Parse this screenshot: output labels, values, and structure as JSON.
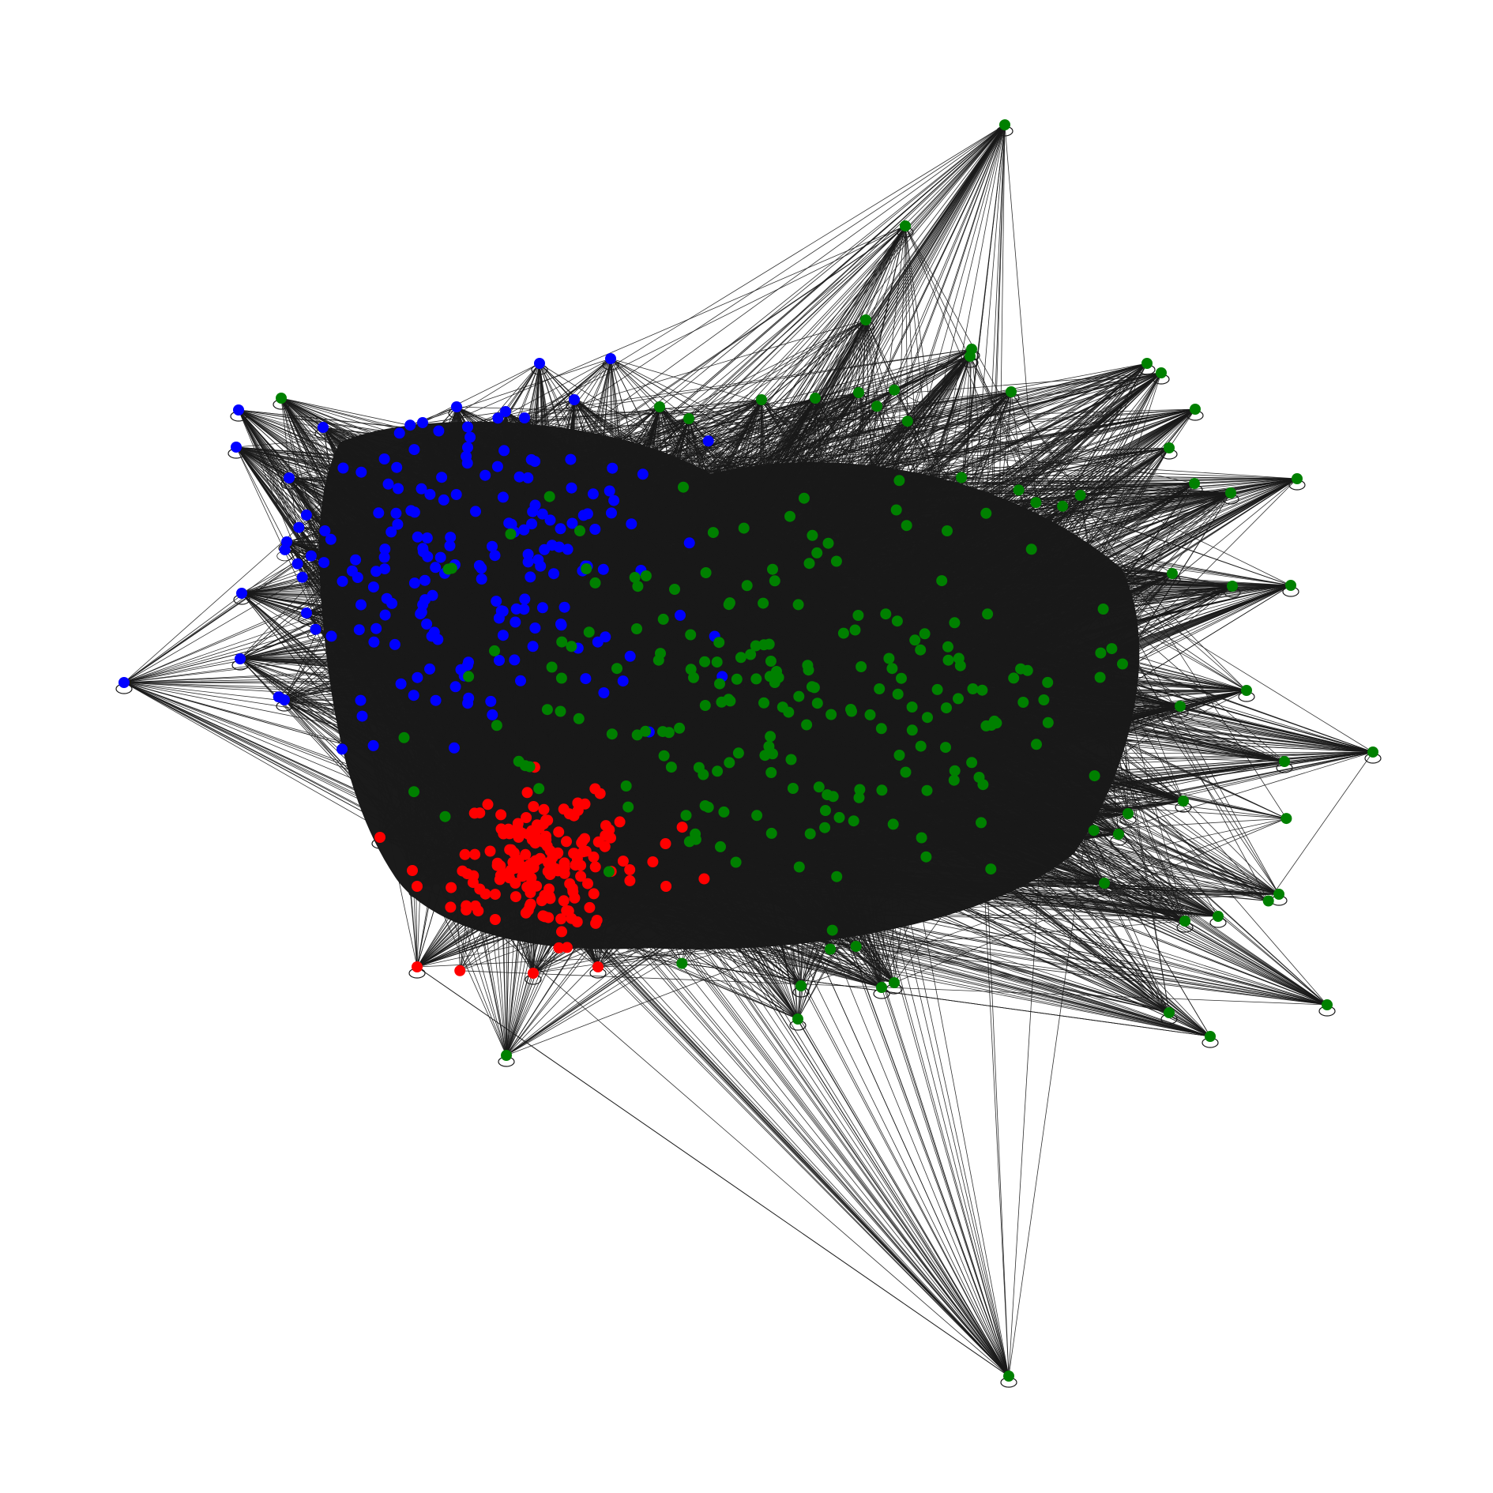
{
  "diagram": {
    "type": "network-graph",
    "background": "#ffffff",
    "edge_color": "#1a1a1a",
    "self_loop_color": "#1a1a1a",
    "communities": [
      {
        "color": "#0000ff",
        "label": ""
      },
      {
        "color": "#ff0000",
        "label": ""
      },
      {
        "color": "#008000",
        "label": ""
      }
    ],
    "node_count_estimate": 620,
    "notes_visible_text": []
  }
}
